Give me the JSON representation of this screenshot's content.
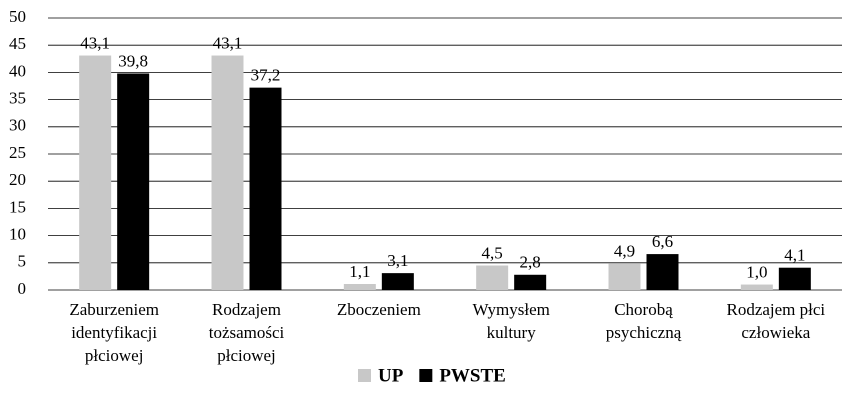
{
  "chart_data": {
    "type": "bar",
    "categories": [
      "Zaburzeniem\nidentyfikacji\npłciowej",
      "Rodzajem\ntożsamości\npłciowej",
      "Zboczeniem",
      "Wymysłem\nkultury",
      "Chorobą\npsychiczną",
      "Rodzajem płci\nczłowieka"
    ],
    "series": [
      {
        "name": "UP",
        "color": "#c8c8c8",
        "values": [
          43.1,
          43.1,
          1.1,
          4.5,
          4.9,
          1.0
        ],
        "value_labels": [
          "43,1",
          "43,1",
          "1,1",
          "4,5",
          "4,9",
          "1,0"
        ]
      },
      {
        "name": "PWSTE",
        "color": "#000000",
        "values": [
          39.8,
          37.2,
          3.1,
          2.8,
          6.6,
          4.1
        ],
        "value_labels": [
          "39,8",
          "37,2",
          "3,1",
          "2,8",
          "6,6",
          "4,1"
        ]
      }
    ],
    "ylim": [
      0,
      50
    ],
    "yticks": [
      0,
      5,
      10,
      15,
      20,
      25,
      30,
      35,
      40,
      45,
      50
    ],
    "grid": true,
    "legend": "bottom"
  }
}
